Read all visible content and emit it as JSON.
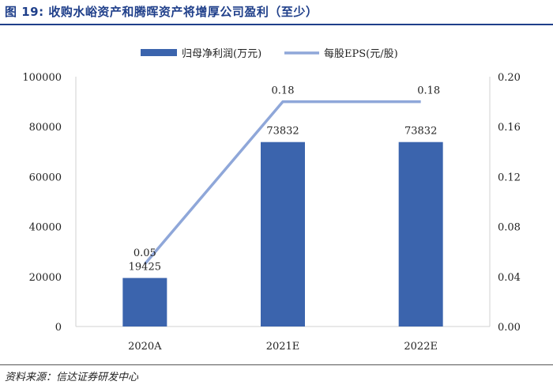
{
  "title": "图 19: 收购水峪资产和腾晖资产将增厚公司盈利（至少）",
  "source": "资料来源：信达证券研发中心",
  "chart_data": {
    "type": "bar",
    "categories": [
      "2020A",
      "2021E",
      "2022E"
    ],
    "series": [
      {
        "name": "归母净利润(万元)",
        "type": "bar",
        "axis": "left",
        "color": "#3b64ad",
        "values": [
          19425,
          73832,
          73832
        ],
        "labels": [
          "19425",
          "73832",
          "73832"
        ]
      },
      {
        "name": "每股EPS(元/股)",
        "type": "line",
        "axis": "right",
        "color": "#8fa7d9",
        "values": [
          0.05,
          0.18,
          0.18
        ],
        "labels": [
          "0.05",
          "0.18",
          "0.18"
        ]
      }
    ],
    "y_left": {
      "range": [
        0,
        100000
      ],
      "ticks": [
        0,
        20000,
        40000,
        60000,
        80000,
        100000
      ],
      "tick_labels": [
        "0",
        "20000",
        "40000",
        "60000",
        "80000",
        "100000"
      ]
    },
    "y_right": {
      "range": [
        0,
        0.2
      ],
      "ticks": [
        0,
        0.04,
        0.08,
        0.12,
        0.16,
        0.2
      ],
      "tick_labels": [
        "0.00",
        "0.04",
        "0.08",
        "0.12",
        "0.16",
        "0.20"
      ]
    },
    "legend": {
      "placement": "top-center"
    },
    "grid": false
  }
}
